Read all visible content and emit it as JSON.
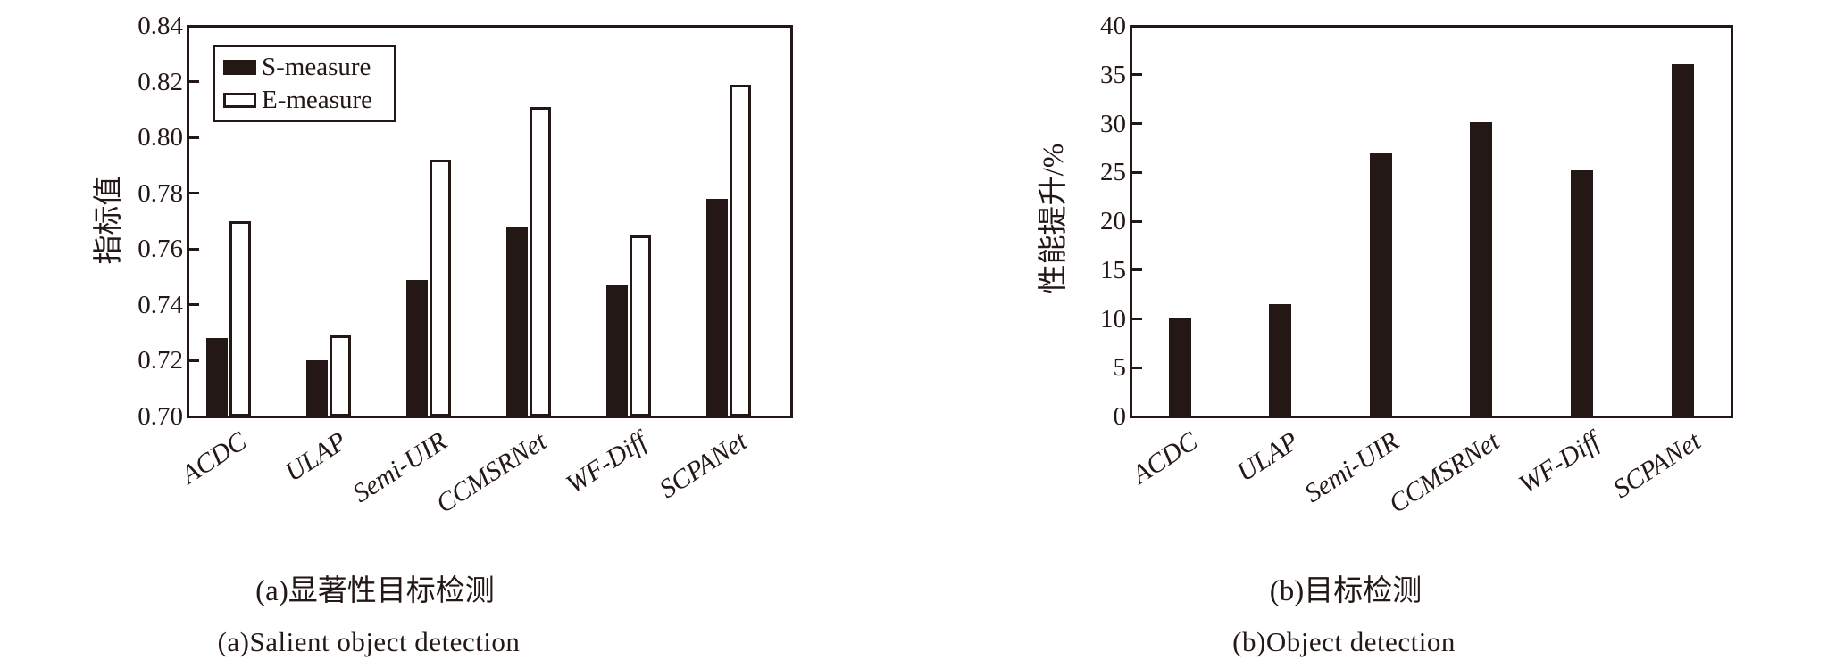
{
  "figure": {
    "background": "#ffffff",
    "ink": "#231815"
  },
  "captions": {
    "a_cn": "(a)显著性目标检测",
    "a_en": "(a)Salient object detection",
    "b_cn": "(b)目标检测",
    "b_en": "(b)Object detection"
  },
  "chart_data": [
    {
      "id": "a",
      "type": "bar",
      "title_cn": "(a)显著性目标检测",
      "title_en": "(a)Salient object detection",
      "categories": [
        "ACDC",
        "ULAP",
        "Semi-UIR",
        "CCMSRNet",
        "WF-Diff",
        "SCPANet"
      ],
      "series": [
        {
          "name": "S-measure",
          "fill": "#231815",
          "values": [
            0.728,
            0.72,
            0.749,
            0.768,
            0.747,
            0.778
          ]
        },
        {
          "name": "E-measure",
          "fill": "#ffffff",
          "values": [
            0.77,
            0.729,
            0.792,
            0.811,
            0.765,
            0.819
          ]
        }
      ],
      "xlabel": "",
      "ylabel": "指标值",
      "ylim": [
        0.7,
        0.84
      ],
      "yticks": [
        0.7,
        0.72,
        0.74,
        0.76,
        0.78,
        0.8,
        0.82,
        0.84
      ],
      "ytick_decimals": 2,
      "legend_position": "upper left",
      "grid": false
    },
    {
      "id": "b",
      "type": "bar",
      "title_cn": "(b)目标检测",
      "title_en": "(b)Object detection",
      "categories": [
        "ACDC",
        "ULAP",
        "Semi-UIR",
        "CCMSRNet",
        "WF-Diff",
        "SCPANet"
      ],
      "series": [
        {
          "name": "性能提升",
          "fill": "#231815",
          "values": [
            10.1,
            11.5,
            27.0,
            30.1,
            25.2,
            36.1
          ]
        }
      ],
      "xlabel": "",
      "ylabel": "性能提升/%",
      "ylim": [
        0,
        40
      ],
      "yticks": [
        0,
        5,
        10,
        15,
        20,
        25,
        30,
        35,
        40
      ],
      "ytick_decimals": 0,
      "legend_position": "none",
      "grid": false
    }
  ]
}
